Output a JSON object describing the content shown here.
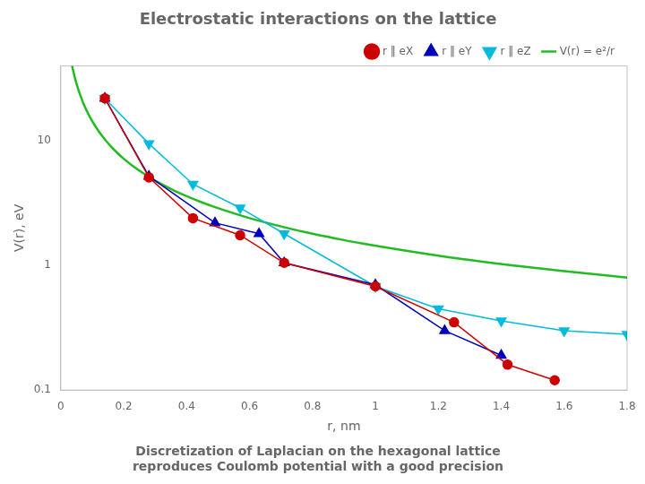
{
  "chart_data": {
    "type": "line",
    "title": "Electrostatic interactions on the lattice",
    "subtitle": "Discretization of Laplacian on the hexagonal lattice\nreproduces Coulomb potential with a good precision",
    "x_label": "r, nm",
    "y_label": "V(r), eV",
    "log": "y",
    "grid": false,
    "legend": "upper right",
    "xlim": [
      0,
      1.8
    ],
    "xticks": [
      0,
      0.2,
      0.4,
      0.6,
      0.8,
      1,
      1.2,
      1.4,
      1.6,
      1.8
    ],
    "ylim": [
      0.1,
      40
    ],
    "yticks": [
      0.1,
      1,
      10
    ],
    "series": [
      {
        "name": "r ‖ eX",
        "color": "#CC0000",
        "marker": "circle",
        "x": [
          0.14,
          0.28,
          0.42,
          0.57,
          0.71,
          1.0,
          1.25,
          1.42,
          1.57
        ],
        "values": [
          22.0,
          5.1,
          2.4,
          1.75,
          1.05,
          0.68,
          0.35,
          0.16,
          0.12
        ]
      },
      {
        "name": "r ‖ eY",
        "color": "#0000BB",
        "marker": "triangle",
        "x": [
          0.14,
          0.28,
          0.49,
          0.63,
          0.71,
          1.0,
          1.22,
          1.4
        ],
        "values": [
          22.0,
          5.2,
          2.2,
          1.8,
          1.05,
          0.7,
          0.3,
          0.19
        ]
      },
      {
        "name": "r ‖ eZ",
        "color": "#00BBDD",
        "marker": "triangle_down",
        "x": [
          0.14,
          0.28,
          0.42,
          0.57,
          0.71,
          1.0,
          1.2,
          1.4,
          1.6,
          1.8
        ],
        "values": [
          22.0,
          9.5,
          4.5,
          2.9,
          1.8,
          0.68,
          0.45,
          0.36,
          0.3,
          0.28
        ]
      },
      {
        "name": "V(r) = e²/r",
        "color": "#22BB22",
        "marker": "none",
        "x": [
          0.036,
          0.04,
          0.045,
          0.05,
          0.06,
          0.072,
          0.08,
          0.09,
          0.1,
          0.12,
          0.144,
          0.16,
          0.18,
          0.2,
          0.24,
          0.288,
          0.32,
          0.36,
          0.4,
          0.45,
          0.48,
          0.6,
          0.72,
          0.8,
          0.9,
          0.96,
          1.2,
          1.44,
          1.6,
          1.8
        ],
        "values": [
          40,
          36,
          32,
          28.8,
          24,
          20,
          18,
          16,
          14.4,
          12,
          10,
          9,
          8,
          7.2,
          6,
          5,
          4.5,
          4,
          3.6,
          3.2,
          3,
          2.4,
          2,
          1.8,
          1.6,
          1.5,
          1.2,
          1,
          0.9,
          0.8
        ]
      }
    ]
  }
}
